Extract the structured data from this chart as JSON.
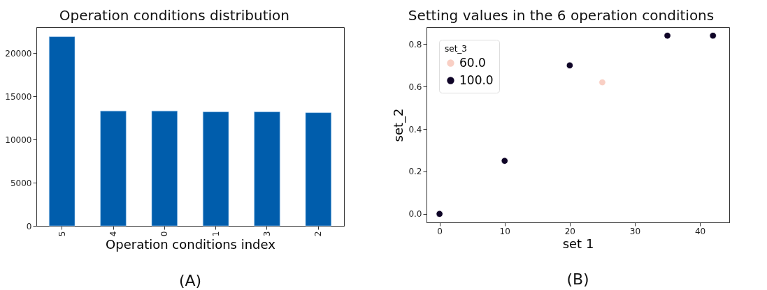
{
  "chart_data": [
    {
      "type": "bar",
      "title": "Operation conditions distribution",
      "xlabel": "Operation conditions index",
      "categories": [
        "5",
        "4",
        "0",
        "1",
        "3",
        "2"
      ],
      "values": [
        21900,
        13300,
        13300,
        13200,
        13200,
        13100
      ],
      "color": "#005dac",
      "ylim": [
        0,
        23000
      ],
      "yticks": [
        0,
        5000,
        10000,
        15000,
        20000
      ],
      "grid": false,
      "annotations": [
        "(A)"
      ]
    },
    {
      "type": "scatter",
      "title": "Setting values in the 6 operation conditions",
      "xlabel": "set 1",
      "ylabel": "set_2",
      "legend_title": "set_3",
      "legend": "top left",
      "marker": "circle",
      "grid": false,
      "series": [
        {
          "name": "60.0",
          "color": "#f9cfc4",
          "x": [
            25
          ],
          "values": [
            0.62
          ]
        },
        {
          "name": "100.0",
          "color": "#0f0427",
          "x": [
            0,
            10,
            20,
            35,
            42
          ],
          "values": [
            0,
            0.25,
            0.7,
            0.84,
            0.84
          ]
        }
      ],
      "xlim": [
        -2,
        44.5
      ],
      "xticks": [
        0,
        10,
        20,
        30,
        40
      ],
      "ylim": [
        -0.04,
        0.88
      ],
      "yticks": [
        {
          "value": 0,
          "label": "0.0"
        },
        {
          "value": 0.2,
          "label": "0.2"
        },
        {
          "value": 0.4,
          "label": "0.4"
        },
        {
          "value": 0.6,
          "label": "0.6"
        },
        {
          "value": 0.8,
          "label": "0.8"
        }
      ],
      "annotations": [
        "(B)"
      ]
    }
  ]
}
